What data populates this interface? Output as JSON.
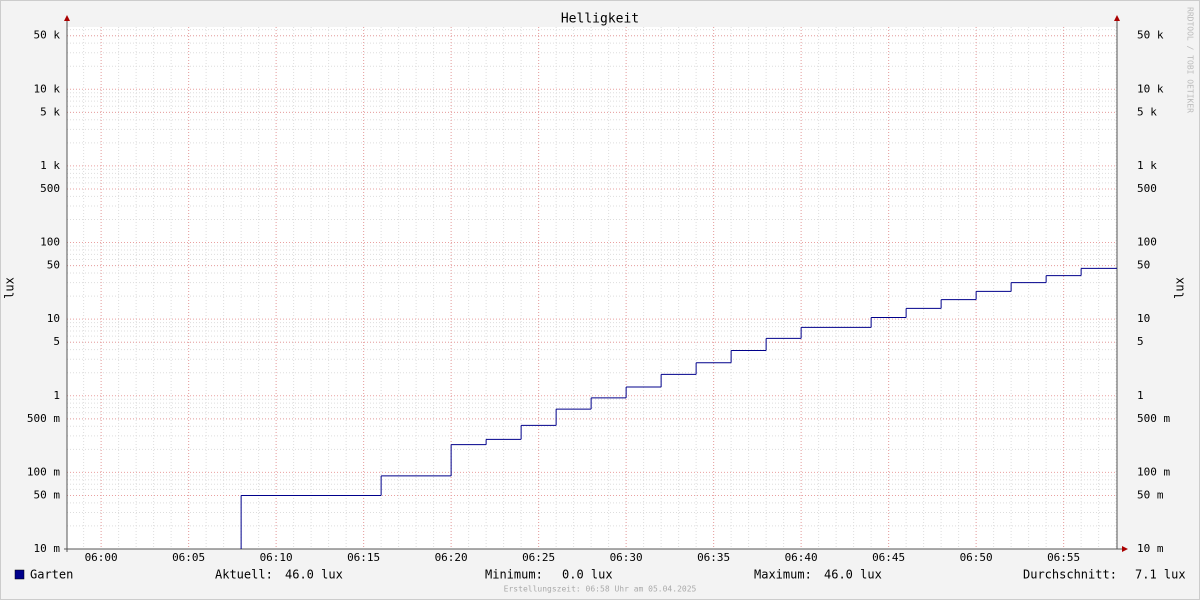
{
  "chart_data": {
    "type": "step",
    "title": "Helligkeit",
    "y_label": "lux",
    "watermark": "RRDTOOL / TOBI OETIKER",
    "log_y": true,
    "grid": true,
    "xlim": [
      358.05,
      418.05
    ],
    "xticks": [
      {
        "value": 360,
        "label": "06:00"
      },
      {
        "value": 365,
        "label": "06:05"
      },
      {
        "value": 370,
        "label": "06:10"
      },
      {
        "value": 375,
        "label": "06:15"
      },
      {
        "value": 380,
        "label": "06:20"
      },
      {
        "value": 385,
        "label": "06:25"
      },
      {
        "value": 390,
        "label": "06:30"
      },
      {
        "value": 395,
        "label": "06:35"
      },
      {
        "value": 400,
        "label": "06:40"
      },
      {
        "value": 405,
        "label": "06:45"
      },
      {
        "value": 410,
        "label": "06:50"
      },
      {
        "value": 415,
        "label": "06:55"
      }
    ],
    "ylim": [
      0.01,
      65000
    ],
    "yticks": [
      {
        "value": 50000,
        "label": "50 k"
      },
      {
        "value": 10000,
        "label": "10 k"
      },
      {
        "value": 5000,
        "label": "5 k"
      },
      {
        "value": 1000,
        "label": "1 k"
      },
      500,
      100,
      50,
      10,
      5,
      1,
      {
        "value": 0.5,
        "label": "500 m"
      },
      {
        "value": 0.1,
        "label": "100 m"
      },
      {
        "value": 0.05,
        "label": "50 m"
      },
      {
        "value": 0.01,
        "label": "10 m"
      }
    ],
    "series": [
      {
        "name": "Garten",
        "color": "#00008b",
        "x": [
          358,
          368,
          376,
          380,
          382,
          384,
          386,
          388,
          390,
          392,
          394,
          396,
          398,
          400,
          404,
          406,
          408,
          410,
          412,
          414,
          416
        ],
        "values": [
          0,
          0.05,
          0.09,
          0.23,
          0.27,
          0.41,
          0.67,
          0.94,
          1.3,
          1.9,
          2.7,
          3.9,
          5.6,
          7.8,
          10.5,
          13.8,
          18,
          23,
          30,
          37,
          46
        ]
      }
    ],
    "stats": [
      {
        "label": "Aktuell:",
        "value": "46.0 lux"
      },
      {
        "label": "Minimum:",
        "value": "0.0 lux"
      },
      {
        "label": "Maximum:",
        "value": "46.0 lux"
      },
      {
        "label": "Durchschnitt:",
        "value": "7.1 lux"
      }
    ],
    "footer": "Erstellungszeit: 06:58 Uhr am 05.04.2025"
  }
}
